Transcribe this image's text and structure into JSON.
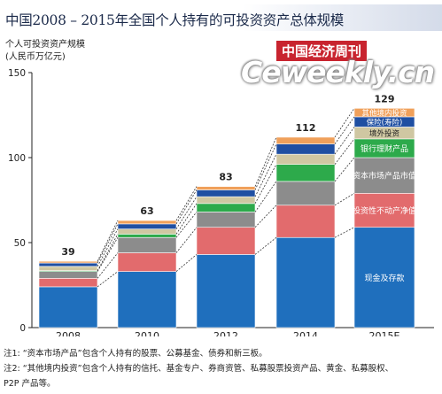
{
  "title": "中国2008 – 2015年全国个人持有的可投资资产总体规模",
  "ylabel_line1": "个人可投资资产规模",
  "ylabel_line2": "(人民币万亿元)",
  "watermark": {
    "cn": "中国经济周刊",
    "en": "Ceweekly.cn"
  },
  "notes": [
    "注1: “资本市场产品”包含个人持有的股票、公募基金、债券和新三板。",
    "注2: “其他境内投资”包含个人持有的信托、基金专户、券商资管、私募股票投资产品、黄金、私募股权、",
    "P2P 产品等。"
  ],
  "colors": {
    "cash": "#1f6fbd",
    "realestate": "#e26b6d",
    "capital": "#8c8c8c",
    "bank": "#2daa4b",
    "overseas": "#cfc7a2",
    "insurance": "#1f4fa2",
    "other": "#f0a05a",
    "axis": "#222222",
    "grid": "#cccccc"
  },
  "chart_data": {
    "type": "bar",
    "stacked": true,
    "categories": [
      "2008",
      "2010",
      "2012",
      "2014",
      "2015E"
    ],
    "totals": [
      39,
      63,
      83,
      112,
      129
    ],
    "ylim": [
      0,
      150
    ],
    "yticks": [
      0,
      50,
      100,
      150
    ],
    "grid": false,
    "series": [
      {
        "name": "现金及存款",
        "key": "cash",
        "values": [
          24,
          33,
          43,
          53,
          59
        ]
      },
      {
        "name": "投资性不动产净值",
        "key": "realestate",
        "values": [
          5,
          11,
          16,
          19,
          20
        ]
      },
      {
        "name": "资本市场产品市值",
        "key": "capital",
        "values": [
          4,
          9,
          9,
          14,
          21
        ]
      },
      {
        "name": "银行理财产品",
        "key": "bank",
        "values": [
          0.5,
          2,
          5,
          10,
          11
        ]
      },
      {
        "name": "境外投资",
        "key": "overseas",
        "values": [
          2.5,
          3,
          4,
          6,
          7
        ]
      },
      {
        "name": "保险(寿险)",
        "key": "insurance",
        "values": [
          2,
          3,
          4,
          6,
          6
        ]
      },
      {
        "name": "其他境内投资",
        "key": "other",
        "values": [
          1,
          2,
          2,
          4,
          5
        ]
      }
    ]
  }
}
